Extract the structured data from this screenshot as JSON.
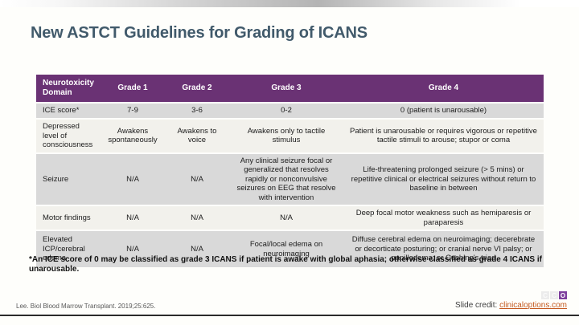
{
  "slide": {
    "title": "New ASTCT Guidelines for Grading of ICANS",
    "footnote": "*An ICE score of 0 may be classified as grade 3 ICANS if patient is awake with global aphasia; otherwise classified as grade 4 ICANS if unarousable."
  },
  "table": {
    "headers": [
      "Neurotoxicity Domain",
      "Grade 1",
      "Grade 2",
      "Grade 3",
      "Grade 4"
    ],
    "rows": [
      [
        "ICE score*",
        "7-9",
        "3-6",
        "0-2",
        "0 (patient is unarousable)"
      ],
      [
        "Depressed level of consciousness",
        "Awakens spontaneously",
        "Awakens to voice",
        "Awakens only to tactile stimulus",
        "Patient is unarousable or requires vigorous or repetitive tactile stimuli to arouse; stupor or coma"
      ],
      [
        "Seizure",
        "N/A",
        "N/A",
        "Any clinical seizure focal or generalized that resolves rapidly or nonconvulsive seizures on EEG that resolve with intervention",
        "Life-threatening prolonged seizure (> 5 mins) or repetitive clinical or electrical seizures without return to baseline in between"
      ],
      [
        "Motor findings",
        "N/A",
        "N/A",
        "N/A",
        "Deep focal motor weakness such as hemiparesis or paraparesis"
      ],
      [
        "Elevated ICP/cerebral edema",
        "N/A",
        "N/A",
        "Focal/local edema on neuroimaging",
        "Diffuse cerebral edema on neuroimaging; decerebrate or decorticate posturing; or cranial nerve VI palsy; or papilledema; or Cushing's triad"
      ]
    ]
  },
  "footer": {
    "citation": "Lee. Biol Blood Marrow Transplant. 2019;25:625.",
    "credit_label": "Slide credit: ",
    "credit_link": "clinicaloptions.com",
    "logo_letters": {
      "l1": "C",
      "l2": "C",
      "l3": "O"
    }
  },
  "colors": {
    "header_purple": "#6a3274",
    "title_text": "#415a6b",
    "row_gray": "#d9d9d9",
    "row_light": "#f2f1ec",
    "credit_link": "#c45a21",
    "logo_purple": "#7d3f9d",
    "bottom_rule": "#2b2b2b"
  }
}
